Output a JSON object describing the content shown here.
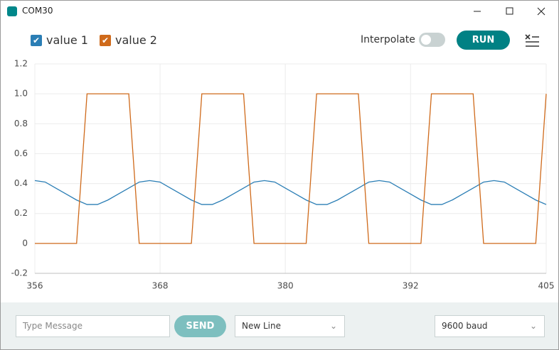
{
  "window": {
    "title": "COM30"
  },
  "toolbar": {
    "interpolate": "Interpolate",
    "run": "RUN"
  },
  "footer": {
    "message_placeholder": "Type Message",
    "send": "SEND",
    "line_ending": "New Line",
    "baud": "9600 baud"
  },
  "chart_data": {
    "type": "line",
    "x": [
      356,
      357,
      358,
      359,
      360,
      361,
      362,
      363,
      364,
      365,
      366,
      367,
      368,
      369,
      370,
      371,
      372,
      373,
      374,
      375,
      376,
      377,
      378,
      379,
      380,
      381,
      382,
      383,
      384,
      385,
      386,
      387,
      388,
      389,
      390,
      391,
      392,
      393,
      394,
      395,
      396,
      397,
      398,
      399,
      400,
      401,
      402,
      403,
      404,
      405
    ],
    "series": [
      {
        "name": "value 1",
        "color": "#2b7eb5",
        "values": [
          0.42,
          0.41,
          0.37,
          0.33,
          0.29,
          0.26,
          0.26,
          0.29,
          0.33,
          0.37,
          0.41,
          0.42,
          0.41,
          0.37,
          0.33,
          0.29,
          0.26,
          0.26,
          0.29,
          0.33,
          0.37,
          0.41,
          0.42,
          0.41,
          0.37,
          0.33,
          0.29,
          0.26,
          0.26,
          0.29,
          0.33,
          0.37,
          0.41,
          0.42,
          0.41,
          0.37,
          0.33,
          0.29,
          0.26,
          0.26,
          0.29,
          0.33,
          0.37,
          0.41,
          0.42,
          0.41,
          0.37,
          0.33,
          0.29,
          0.26
        ]
      },
      {
        "name": "value 2",
        "color": "#cf6a1b",
        "values": [
          0,
          0,
          0,
          0,
          0,
          1,
          1,
          1,
          1,
          1,
          0,
          0,
          0,
          0,
          0,
          0,
          1,
          1,
          1,
          1,
          1,
          0,
          0,
          0,
          0,
          0,
          0,
          1,
          1,
          1,
          1,
          1,
          0,
          0,
          0,
          0,
          0,
          0,
          1,
          1,
          1,
          1,
          1,
          0,
          0,
          0,
          0,
          0,
          0,
          1
        ]
      }
    ],
    "xlim": [
      356,
      405
    ],
    "xticks": [
      356,
      368,
      380,
      392,
      405
    ],
    "ylim": [
      -0.2,
      1.2
    ],
    "yticks": [
      -0.2,
      0,
      0.2,
      0.4,
      0.6,
      0.8,
      {
        "value": 1,
        "label": "1.0"
      },
      1.2
    ],
    "grid": true
  }
}
